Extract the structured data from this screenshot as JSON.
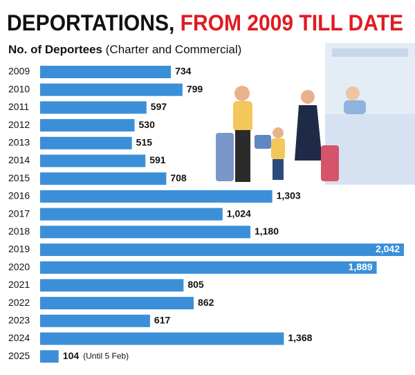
{
  "chart_data": {
    "type": "bar",
    "orientation": "horizontal",
    "title": [
      "DEPORTATIONS,",
      "FROM 2009 TILL DATE"
    ],
    "title_color": "#e01b22",
    "subtitle": [
      "No. of Deportees",
      "(Charter and Commercial)"
    ],
    "categories": [
      "2009",
      "2010",
      "2011",
      "2012",
      "2013",
      "2014",
      "2015",
      "2016",
      "2017",
      "2018",
      "2019",
      "2020",
      "2021",
      "2022",
      "2023",
      "2024",
      "2025"
    ],
    "values": [
      734,
      799,
      597,
      530,
      515,
      591,
      708,
      1303,
      1024,
      1180,
      2042,
      1889,
      805,
      862,
      617,
      1368,
      104
    ],
    "value_labels": [
      "734",
      "799",
      "597",
      "530",
      "515",
      "591",
      "708",
      "1,303",
      "1,024",
      "1,180",
      "2,042",
      "1,889",
      "805",
      "862",
      "617",
      "1,368",
      "104"
    ],
    "annotation": "(Until 5 Feb)",
    "color": "#3b8fd8"
  }
}
